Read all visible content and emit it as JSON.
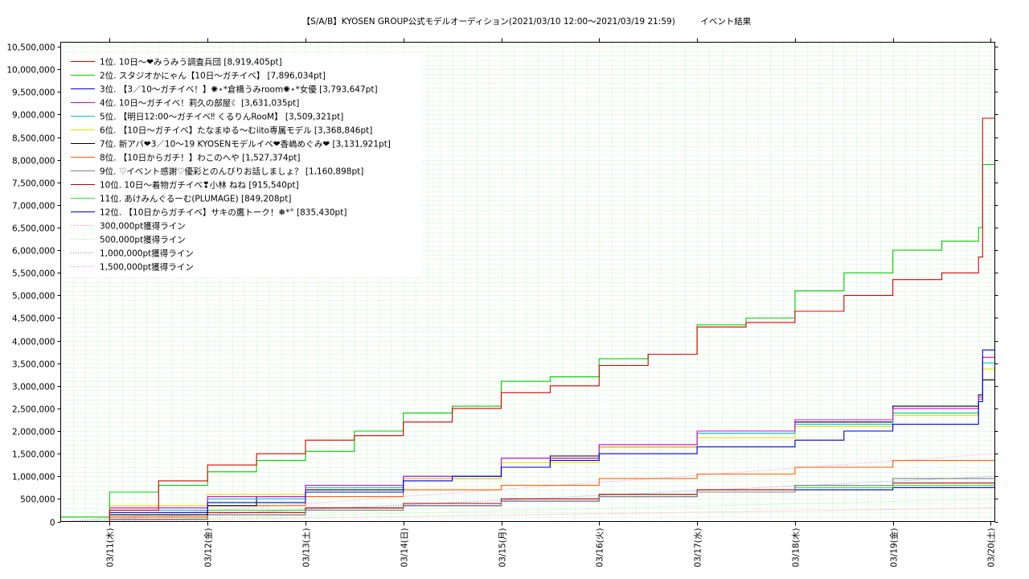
{
  "chart_data": {
    "type": "line",
    "title": "【S/A/B】KYOSEN GROUP公式モデルオーディション(2021/03/10 12:00～2021/03/19 21:59)　　　イベント結果",
    "xlabel": "",
    "ylabel": "",
    "xlim": [
      "2021/03/10 12:00",
      "2021/03/20 01:00"
    ],
    "ylim": [
      0,
      10600000
    ],
    "grid": true,
    "legend_position": "top-left",
    "x_ticks": [
      "03/11(木)",
      "03/12(金)",
      "03/13(土)",
      "03/14(日)",
      "03/15(月)",
      "03/16(火)",
      "03/17(水)",
      "03/18(木)",
      "03/19(金)",
      "03/20(土)"
    ],
    "y_ticks": [
      "0",
      "500,000",
      "1,000,000",
      "1,500,000",
      "2,000,000",
      "2,500,000",
      "3,000,000",
      "3,500,000",
      "4,000,000",
      "4,500,000",
      "5,000,000",
      "5,500,000",
      "6,000,000",
      "6,500,000",
      "7,000,000",
      "7,500,000",
      "8,000,000",
      "8,500,000",
      "9,000,000",
      "9,500,000",
      "10,000,000",
      "10,500,000"
    ],
    "series": [
      {
        "name": "1位. 10日〜❤みうみう調査兵団 [8,919,405pt]",
        "color": "#e00000",
        "points": [
          [
            "03/10 12:00",
            0
          ],
          [
            "03/11 00:00",
            250000
          ],
          [
            "03/11 12:00",
            900000
          ],
          [
            "03/12 00:00",
            1250000
          ],
          [
            "03/12 12:00",
            1500000
          ],
          [
            "03/13 00:00",
            1800000
          ],
          [
            "03/13 12:00",
            1900000
          ],
          [
            "03/14 00:00",
            2200000
          ],
          [
            "03/14 12:00",
            2500000
          ],
          [
            "03/15 00:00",
            2850000
          ],
          [
            "03/15 12:00",
            3000000
          ],
          [
            "03/16 00:00",
            3450000
          ],
          [
            "03/16 12:00",
            3700000
          ],
          [
            "03/17 00:00",
            4300000
          ],
          [
            "03/17 12:00",
            4400000
          ],
          [
            "03/18 00:00",
            4650000
          ],
          [
            "03/18 12:00",
            5000000
          ],
          [
            "03/19 00:00",
            5350000
          ],
          [
            "03/19 12:00",
            5500000
          ],
          [
            "03/19 21:00",
            5850000
          ],
          [
            "03/19 22:00",
            8919405
          ],
          [
            "03/20 01:00",
            8919405
          ]
        ]
      },
      {
        "name": "2位. スタジオかにゃん【10日〜ガチイベ】 [7,896,034pt]",
        "color": "#00d000",
        "points": [
          [
            "03/10 12:00",
            100000
          ],
          [
            "03/11 00:00",
            650000
          ],
          [
            "03/11 12:00",
            800000
          ],
          [
            "03/12 00:00",
            1100000
          ],
          [
            "03/12 12:00",
            1350000
          ],
          [
            "03/13 00:00",
            1550000
          ],
          [
            "03/13 12:00",
            2000000
          ],
          [
            "03/14 00:00",
            2400000
          ],
          [
            "03/14 12:00",
            2550000
          ],
          [
            "03/15 00:00",
            3100000
          ],
          [
            "03/15 12:00",
            3200000
          ],
          [
            "03/16 00:00",
            3600000
          ],
          [
            "03/16 12:00",
            3700000
          ],
          [
            "03/17 00:00",
            4350000
          ],
          [
            "03/17 12:00",
            4500000
          ],
          [
            "03/18 00:00",
            5100000
          ],
          [
            "03/18 12:00",
            5500000
          ],
          [
            "03/19 00:00",
            6000000
          ],
          [
            "03/19 12:00",
            6200000
          ],
          [
            "03/19 21:00",
            6500000
          ],
          [
            "03/19 22:00",
            7896034
          ],
          [
            "03/20 01:00",
            7896034
          ]
        ]
      },
      {
        "name": "3位. 【3／10〜ガチイベ！】✺⋆*倉橋うみroom✺⋆*女優 [3,793,647pt]",
        "color": "#0000e0",
        "points": [
          [
            "03/10 12:00",
            0
          ],
          [
            "03/11 00:00",
            200000
          ],
          [
            "03/12 00:00",
            420000
          ],
          [
            "03/13 00:00",
            650000
          ],
          [
            "03/14 00:00",
            900000
          ],
          [
            "03/14 12:00",
            1000000
          ],
          [
            "03/15 00:00",
            1200000
          ],
          [
            "03/15 12:00",
            1350000
          ],
          [
            "03/16 00:00",
            1500000
          ],
          [
            "03/17 00:00",
            1650000
          ],
          [
            "03/18 00:00",
            1800000
          ],
          [
            "03/18 12:00",
            2000000
          ],
          [
            "03/19 00:00",
            2150000
          ],
          [
            "03/19 21:00",
            2650000
          ],
          [
            "03/19 22:00",
            3793647
          ],
          [
            "03/20 01:00",
            3793647
          ]
        ]
      },
      {
        "name": "4位. 10日〜ガチイベ！莉久の部屋☾ [3,631,035pt]",
        "color": "#e000e0",
        "points": [
          [
            "03/10 12:00",
            0
          ],
          [
            "03/11 00:00",
            300000
          ],
          [
            "03/12 00:00",
            550000
          ],
          [
            "03/13 00:00",
            800000
          ],
          [
            "03/14 00:00",
            1000000
          ],
          [
            "03/15 00:00",
            1400000
          ],
          [
            "03/16 00:00",
            1700000
          ],
          [
            "03/17 00:00",
            2000000
          ],
          [
            "03/18 00:00",
            2250000
          ],
          [
            "03/19 00:00",
            2500000
          ],
          [
            "03/19 21:00",
            2750000
          ],
          [
            "03/19 22:00",
            3631035
          ],
          [
            "03/20 01:00",
            3631035
          ]
        ]
      },
      {
        "name": "5位. 【明日12:00〜ガチイベ‼ くるりんRooM】 [3,509,321pt]",
        "color": "#00c8c8",
        "points": [
          [
            "03/10 12:00",
            0
          ],
          [
            "03/11 00:00",
            250000
          ],
          [
            "03/12 00:00",
            500000
          ],
          [
            "03/13 00:00",
            750000
          ],
          [
            "03/14 00:00",
            1000000
          ],
          [
            "03/15 00:00",
            1400000
          ],
          [
            "03/16 00:00",
            1700000
          ],
          [
            "03/17 00:00",
            1950000
          ],
          [
            "03/18 00:00",
            2150000
          ],
          [
            "03/19 00:00",
            2400000
          ],
          [
            "03/19 21:00",
            2700000
          ],
          [
            "03/19 22:00",
            3509321
          ],
          [
            "03/20 01:00",
            3509321
          ]
        ]
      },
      {
        "name": "6位. 【10日〜ガチイベ】たなまゆる〜むiito専属モデル [3,368,846pt]",
        "color": "#e8e000",
        "points": [
          [
            "03/10 12:00",
            0
          ],
          [
            "03/11 00:00",
            350000
          ],
          [
            "03/12 00:00",
            600000
          ],
          [
            "03/13 00:00",
            800000
          ],
          [
            "03/14 00:00",
            950000
          ],
          [
            "03/15 00:00",
            1300000
          ],
          [
            "03/16 00:00",
            1650000
          ],
          [
            "03/17 00:00",
            1850000
          ],
          [
            "03/18 00:00",
            2100000
          ],
          [
            "03/19 00:00",
            2350000
          ],
          [
            "03/19 21:00",
            2650000
          ],
          [
            "03/19 22:00",
            3368846
          ],
          [
            "03/20 01:00",
            3368846
          ]
        ]
      },
      {
        "name": "7位. 新アバ❤3／10〜19 KYOSENモデルイベ❤香嶋めぐみ❤ [3,131,921pt]",
        "color": "#000000",
        "points": [
          [
            "03/10 12:00",
            0
          ],
          [
            "03/11 00:00",
            150000
          ],
          [
            "03/12 00:00",
            350000
          ],
          [
            "03/12 12:00",
            550000
          ],
          [
            "03/13 00:00",
            700000
          ],
          [
            "03/14 00:00",
            950000
          ],
          [
            "03/15 00:00",
            1200000
          ],
          [
            "03/15 12:00",
            1450000
          ],
          [
            "03/16 00:00",
            1650000
          ],
          [
            "03/17 00:00",
            1950000
          ],
          [
            "03/18 00:00",
            2200000
          ],
          [
            "03/19 00:00",
            2550000
          ],
          [
            "03/19 21:00",
            2800000
          ],
          [
            "03/19 22:00",
            3131921
          ],
          [
            "03/20 01:00",
            3131921
          ]
        ]
      },
      {
        "name": "8位. 【10日からガチ！】わこのへや [1,527,374pt]",
        "color": "#ff6000",
        "points": [
          [
            "03/10 12:00",
            0
          ],
          [
            "03/11 00:00",
            100000
          ],
          [
            "03/12 00:00",
            350000
          ],
          [
            "03/13 00:00",
            550000
          ],
          [
            "03/14 00:00",
            700000
          ],
          [
            "03/15 00:00",
            800000
          ],
          [
            "03/16 00:00",
            950000
          ],
          [
            "03/17 00:00",
            1050000
          ],
          [
            "03/18 00:00",
            1200000
          ],
          [
            "03/19 00:00",
            1350000
          ],
          [
            "03/20 01:00",
            1527374
          ]
        ]
      },
      {
        "name": "9位. ♡イベント感謝♡優彩とのんびりお話しましょ？ [1,160,898pt]",
        "color": "#808080",
        "points": [
          [
            "03/10 12:00",
            0
          ],
          [
            "03/11 00:00",
            50000
          ],
          [
            "03/12 00:00",
            150000
          ],
          [
            "03/13 00:00",
            250000
          ],
          [
            "03/14 00:00",
            350000
          ],
          [
            "03/15 00:00",
            450000
          ],
          [
            "03/16 00:00",
            550000
          ],
          [
            "03/17 00:00",
            650000
          ],
          [
            "03/18 00:00",
            800000
          ],
          [
            "03/19 00:00",
            950000
          ],
          [
            "03/20 01:00",
            1160898
          ]
        ]
      },
      {
        "name": "10位. 10日〜着物ガチイベ❣小林 ねね [915,540pt]",
        "color": "#c00000",
        "points": [
          [
            "03/10 12:00",
            0
          ],
          [
            "03/11 00:00",
            100000
          ],
          [
            "03/12 00:00",
            200000
          ],
          [
            "03/13 00:00",
            300000
          ],
          [
            "03/14 00:00",
            400000
          ],
          [
            "03/15 00:00",
            500000
          ],
          [
            "03/16 00:00",
            600000
          ],
          [
            "03/17 00:00",
            700000
          ],
          [
            "03/18 00:00",
            800000
          ],
          [
            "03/19 00:00",
            850000
          ],
          [
            "03/20 01:00",
            915540
          ]
        ]
      },
      {
        "name": "11位. あけみんぐるーむ(PLUMAGE) [849,208pt]",
        "color": "#30e030",
        "points": [
          [
            "03/10 12:00",
            0
          ],
          [
            "03/11 00:00",
            150000
          ],
          [
            "03/12 00:00",
            250000
          ],
          [
            "03/13 00:00",
            300000
          ],
          [
            "03/14 00:00",
            400000
          ],
          [
            "03/15 00:00",
            500000
          ],
          [
            "03/16 00:00",
            600000
          ],
          [
            "03/17 00:00",
            700000
          ],
          [
            "03/18 00:00",
            750000
          ],
          [
            "03/19 00:00",
            800000
          ],
          [
            "03/20 01:00",
            849208
          ]
        ]
      },
      {
        "name": "12位. 【10日からガチイベ】サキの鷹トーク！❅*° [835,430pt]",
        "color": "#0000b0",
        "points": [
          [
            "03/10 12:00",
            0
          ],
          [
            "03/11 00:00",
            50000
          ],
          [
            "03/12 00:00",
            150000
          ],
          [
            "03/13 00:00",
            300000
          ],
          [
            "03/14 00:00",
            350000
          ],
          [
            "03/15 00:00",
            450000
          ],
          [
            "03/16 00:00",
            550000
          ],
          [
            "03/17 00:00",
            650000
          ],
          [
            "03/18 00:00",
            700000
          ],
          [
            "03/19 00:00",
            750000
          ],
          [
            "03/20 01:00",
            835430
          ]
        ]
      }
    ],
    "reference_lines": [
      {
        "name": "300,000pt獲得ライン",
        "color": "#ff8080",
        "points": [
          [
            "03/10 12:00",
            0
          ],
          [
            "03/20 01:00",
            300000
          ]
        ]
      },
      {
        "name": "500,000pt獲得ライン",
        "color": "#80ff80",
        "points": [
          [
            "03/10 12:00",
            0
          ],
          [
            "03/20 01:00",
            500000
          ]
        ]
      },
      {
        "name": "1,000,000pt獲得ライン",
        "color": "#8080ff",
        "points": [
          [
            "03/10 12:00",
            0
          ],
          [
            "03/20 01:00",
            1000000
          ]
        ]
      },
      {
        "name": "1,500,000pt獲得ライン",
        "color": "#ff80ff",
        "points": [
          [
            "03/10 12:00",
            0
          ],
          [
            "03/20 01:00",
            1500000
          ]
        ]
      }
    ]
  }
}
